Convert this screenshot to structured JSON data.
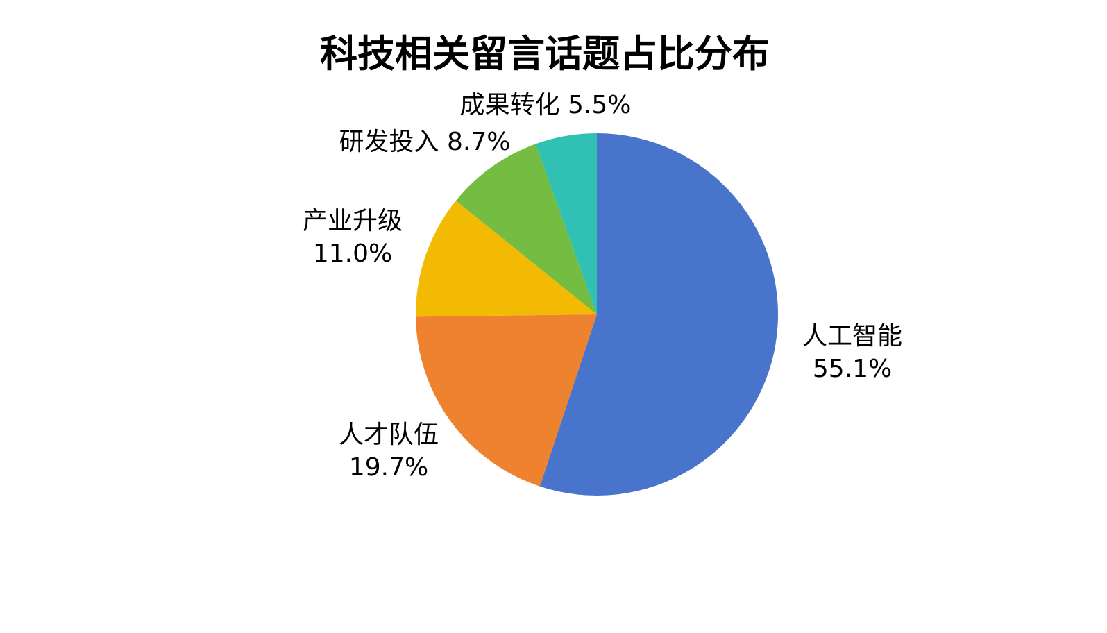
{
  "chart_data": {
    "type": "pie",
    "title": "科技相关留言话题占比分布",
    "categories": [
      "人工智能",
      "人才队伍",
      "产业升级",
      "研发投入",
      "成果转化"
    ],
    "values": [
      55.1,
      19.7,
      11.0,
      8.7,
      5.5
    ],
    "unit": "%",
    "colors": [
      "#4874CB",
      "#EE822F",
      "#F2BA02",
      "#75BD42",
      "#30C0B4"
    ],
    "start_angle": "12 o'clock",
    "direction": "clockwise",
    "legend": "none",
    "data_labels": "outside, category and percentage"
  }
}
